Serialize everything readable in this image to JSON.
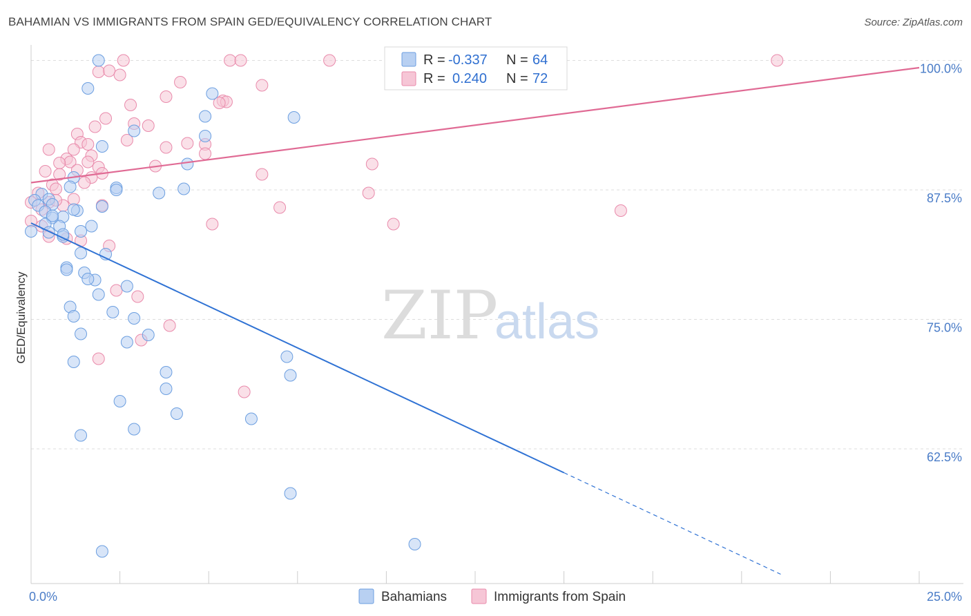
{
  "header": {
    "title": "BAHAMIAN VS IMMIGRANTS FROM SPAIN GED/EQUIVALENCY CORRELATION CHART",
    "source": "Source: ZipAtlas.com"
  },
  "watermark": {
    "zip": "ZIP",
    "atlas": "atlas"
  },
  "colors": {
    "blue": "#6b9ee0",
    "blue_fill": "#b8d0f2",
    "blue_line": "#2f72d4",
    "pink": "#e98aab",
    "pink_fill": "#f6c6d6",
    "pink_line": "#e06a94",
    "tick_text": "#4a7cc7",
    "grid": "#dddddd"
  },
  "legend": {
    "rows": [
      {
        "r_label": "R =",
        "r_value": "-0.337",
        "n_label": "N =",
        "n_value": "64"
      },
      {
        "r_label": "R =",
        "r_value": "0.240",
        "n_label": "N =",
        "n_value": "72"
      }
    ]
  },
  "chart_data": {
    "type": "scatter",
    "title": "BAHAMIAN VS IMMIGRANTS FROM SPAIN GED/EQUIVALENCY CORRELATION CHART",
    "xlabel": "",
    "ylabel": "GED/Equivalency",
    "xlim": [
      0,
      25
    ],
    "ylim": [
      49.5,
      101.5
    ],
    "x_tick_labels": [
      "0.0%",
      "25.0%"
    ],
    "y_ticks": [
      62.5,
      75.0,
      87.5,
      100.0
    ],
    "y_tick_labels": [
      "62.5%",
      "75.0%",
      "87.5%",
      "100.0%"
    ],
    "grid": true,
    "series": [
      {
        "name": "Bahamians",
        "trend": {
          "x0": 0,
          "y0": 84.3,
          "x1": 15,
          "y1": 60.2,
          "dash_to_x": 21.1,
          "dash_to_y": 50.4
        },
        "points": [
          [
            1.9,
            100.0
          ],
          [
            1.6,
            97.3
          ],
          [
            5.1,
            96.8
          ],
          [
            7.4,
            94.5
          ],
          [
            4.9,
            94.6
          ],
          [
            2.9,
            93.2
          ],
          [
            4.9,
            92.7
          ],
          [
            2.0,
            91.7
          ],
          [
            4.4,
            90.0
          ],
          [
            1.2,
            88.7
          ],
          [
            0.3,
            87.1
          ],
          [
            1.1,
            87.8
          ],
          [
            2.4,
            87.7
          ],
          [
            3.6,
            87.2
          ],
          [
            4.3,
            87.6
          ],
          [
            2.4,
            87.5
          ],
          [
            0.1,
            86.5
          ],
          [
            0.2,
            86.0
          ],
          [
            0.5,
            86.6
          ],
          [
            0.6,
            86.1
          ],
          [
            0.4,
            85.4
          ],
          [
            1.3,
            85.5
          ],
          [
            2.0,
            85.9
          ],
          [
            0.9,
            84.9
          ],
          [
            0.6,
            84.8
          ],
          [
            0.4,
            84.2
          ],
          [
            0.8,
            84.0
          ],
          [
            1.7,
            84.0
          ],
          [
            0.5,
            83.4
          ],
          [
            0.9,
            83.0
          ],
          [
            1.4,
            83.5
          ],
          [
            0.0,
            83.5
          ],
          [
            0.9,
            83.2
          ],
          [
            1.4,
            81.4
          ],
          [
            2.1,
            81.3
          ],
          [
            1.0,
            80.0
          ],
          [
            1.0,
            79.8
          ],
          [
            1.5,
            79.5
          ],
          [
            1.8,
            78.8
          ],
          [
            1.6,
            78.9
          ],
          [
            2.7,
            78.2
          ],
          [
            1.9,
            77.4
          ],
          [
            1.1,
            76.2
          ],
          [
            2.3,
            75.7
          ],
          [
            2.9,
            75.1
          ],
          [
            1.2,
            75.3
          ],
          [
            1.4,
            73.6
          ],
          [
            3.3,
            73.5
          ],
          [
            2.7,
            72.8
          ],
          [
            7.2,
            71.4
          ],
          [
            1.2,
            70.9
          ],
          [
            3.8,
            69.9
          ],
          [
            7.3,
            69.6
          ],
          [
            3.8,
            68.3
          ],
          [
            2.5,
            67.1
          ],
          [
            4.1,
            65.9
          ],
          [
            6.2,
            65.4
          ],
          [
            2.9,
            64.4
          ],
          [
            1.4,
            63.8
          ],
          [
            7.3,
            58.2
          ],
          [
            10.8,
            53.3
          ],
          [
            2.0,
            52.6
          ],
          [
            0.6,
            85.0
          ],
          [
            1.2,
            85.6
          ]
        ]
      },
      {
        "name": "Immigrants from Spain",
        "trend": {
          "x0": 0,
          "y0": 88.2,
          "x1": 25,
          "y1": 99.3
        },
        "points": [
          [
            2.6,
            100.0
          ],
          [
            5.6,
            100.0
          ],
          [
            5.9,
            100.0
          ],
          [
            8.4,
            100.0
          ],
          [
            21.0,
            100.0
          ],
          [
            12.0,
            100.0
          ],
          [
            1.9,
            98.9
          ],
          [
            2.2,
            99.0
          ],
          [
            2.5,
            98.6
          ],
          [
            4.2,
            97.9
          ],
          [
            6.5,
            97.6
          ],
          [
            3.8,
            96.5
          ],
          [
            5.4,
            96.1
          ],
          [
            5.5,
            96.0
          ],
          [
            5.3,
            95.9
          ],
          [
            2.8,
            95.7
          ],
          [
            2.1,
            94.4
          ],
          [
            2.9,
            93.9
          ],
          [
            1.8,
            93.6
          ],
          [
            3.3,
            93.7
          ],
          [
            1.3,
            92.9
          ],
          [
            2.7,
            92.3
          ],
          [
            1.4,
            92.1
          ],
          [
            4.4,
            92.0
          ],
          [
            3.8,
            91.6
          ],
          [
            4.9,
            91.9
          ],
          [
            0.5,
            91.4
          ],
          [
            1.6,
            91.9
          ],
          [
            1.2,
            91.4
          ],
          [
            4.9,
            91.0
          ],
          [
            1.7,
            90.8
          ],
          [
            1.0,
            90.5
          ],
          [
            1.1,
            90.2
          ],
          [
            0.8,
            90.1
          ],
          [
            1.6,
            90.2
          ],
          [
            3.5,
            89.8
          ],
          [
            9.6,
            90.0
          ],
          [
            1.9,
            89.7
          ],
          [
            1.3,
            89.4
          ],
          [
            0.4,
            89.3
          ],
          [
            0.8,
            89.0
          ],
          [
            6.5,
            89.0
          ],
          [
            2.0,
            89.1
          ],
          [
            1.7,
            88.7
          ],
          [
            1.5,
            88.2
          ],
          [
            0.6,
            88.0
          ],
          [
            9.5,
            87.2
          ],
          [
            0.2,
            87.2
          ],
          [
            0.7,
            87.6
          ],
          [
            1.2,
            86.6
          ],
          [
            0.5,
            86.3
          ],
          [
            0.9,
            86.0
          ],
          [
            0.0,
            86.3
          ],
          [
            0.3,
            85.6
          ],
          [
            7.0,
            85.8
          ],
          [
            16.6,
            85.5
          ],
          [
            5.1,
            84.2
          ],
          [
            10.2,
            84.2
          ],
          [
            0.3,
            84.0
          ],
          [
            1.4,
            82.6
          ],
          [
            0.5,
            83.0
          ],
          [
            2.2,
            82.1
          ],
          [
            2.4,
            77.8
          ],
          [
            3.0,
            77.2
          ],
          [
            3.9,
            74.4
          ],
          [
            3.1,
            73.0
          ],
          [
            1.9,
            71.2
          ],
          [
            6.0,
            68.0
          ],
          [
            0.7,
            86.5
          ],
          [
            1.0,
            82.8
          ],
          [
            0.0,
            84.5
          ],
          [
            2.0,
            86.0
          ]
        ]
      }
    ]
  }
}
